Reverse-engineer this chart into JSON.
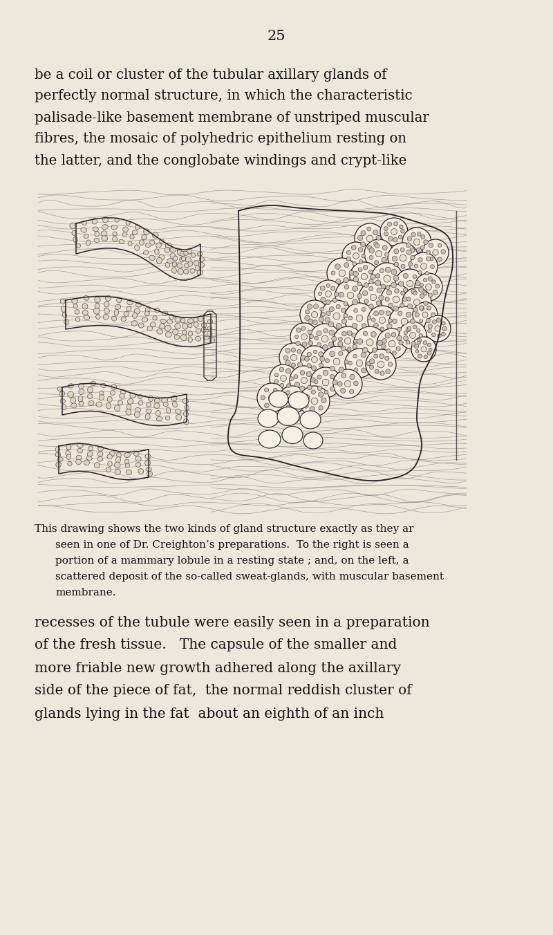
{
  "background_color": "#ede8dc",
  "page_number": "25",
  "text_color": "#111111",
  "top_text_lines": [
    "be a coil or cluster of the tubular axillary glands of",
    "perfectly normal structure, in which the characteristic",
    "palisade-like basement membrane of unstriped muscular",
    "fibres, the mosaic of polyhedric epithelium resting on",
    "the latter, and the conglobate windings and crypt-like"
  ],
  "caption_line0": "This drawing shows the two kinds of gland structure exactly as they ar",
  "caption_lines": [
    "seen in one of Dr. Creighton’s preparations.  To the right is seen a",
    "portion of a mammary lobule in a resting state ; and, on the left, a",
    "scattered deposit of the so-called sweat-glands, with muscular basement",
    "membrane."
  ],
  "bottom_text_lines": [
    "recesses of the tubule were easily seen in a preparation",
    "of the fresh tissue.   The capsule of the smaller and",
    "more friable new growth adhered along the axillary",
    "side of the piece of fat,  the normal reddish cluster of",
    "glands lying in the fat  about an eighth of an inch"
  ]
}
